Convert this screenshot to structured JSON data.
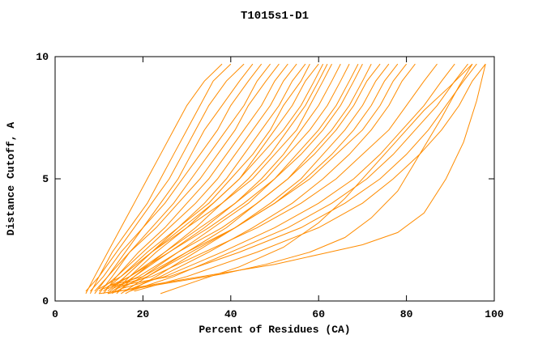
{
  "chart": {
    "title": "T1015s1-D1",
    "xlabel": "Percent of Residues (CA)",
    "ylabel": "Distance Cutoff, A"
  },
  "chart_data": {
    "type": "line",
    "title": "T1015s1-D1",
    "xlabel": "Percent of Residues (CA)",
    "ylabel": "Distance Cutoff, A",
    "xlim": [
      0,
      100
    ],
    "ylim": [
      0,
      10
    ],
    "x_ticks": [
      0,
      20,
      40,
      60,
      80,
      100
    ],
    "y_ticks": [
      0,
      5,
      10
    ],
    "grid": false,
    "legend": "none",
    "line_color": "#ff8c00",
    "axis_color": "#000000",
    "curves": [
      [
        [
          7,
          0.3
        ],
        [
          9,
          1
        ],
        [
          12,
          2
        ],
        [
          15,
          3
        ],
        [
          18,
          4
        ],
        [
          21,
          5
        ],
        [
          24,
          6
        ],
        [
          27,
          7
        ],
        [
          30,
          8
        ],
        [
          34,
          9
        ],
        [
          38,
          9.7
        ]
      ],
      [
        [
          8,
          0.3
        ],
        [
          10,
          1
        ],
        [
          13,
          2
        ],
        [
          17,
          3
        ],
        [
          21,
          4
        ],
        [
          24,
          5
        ],
        [
          27,
          6
        ],
        [
          30,
          7
        ],
        [
          33,
          8
        ],
        [
          36,
          9
        ],
        [
          40,
          9.7
        ]
      ],
      [
        [
          7,
          0.4
        ],
        [
          10,
          1
        ],
        [
          14,
          2
        ],
        [
          18,
          3
        ],
        [
          22,
          4
        ],
        [
          26,
          5
        ],
        [
          29,
          6
        ],
        [
          32,
          7
        ],
        [
          35,
          8
        ],
        [
          39,
          9
        ],
        [
          43,
          9.7
        ]
      ],
      [
        [
          9,
          0.3
        ],
        [
          12,
          1
        ],
        [
          16,
          2
        ],
        [
          20,
          3
        ],
        [
          24,
          4
        ],
        [
          28,
          5
        ],
        [
          31,
          6
        ],
        [
          34,
          7
        ],
        [
          38,
          8
        ],
        [
          42,
          9
        ],
        [
          45,
          9.7
        ]
      ],
      [
        [
          8,
          0.4
        ],
        [
          11,
          1
        ],
        [
          15,
          2
        ],
        [
          20,
          3
        ],
        [
          25,
          4
        ],
        [
          29,
          5
        ],
        [
          33,
          6
        ],
        [
          37,
          7
        ],
        [
          40,
          8
        ],
        [
          44,
          9
        ],
        [
          47,
          9.7
        ]
      ],
      [
        [
          10,
          0.3
        ],
        [
          13,
          1
        ],
        [
          17,
          2
        ],
        [
          22,
          3
        ],
        [
          27,
          4
        ],
        [
          31,
          5
        ],
        [
          35,
          6
        ],
        [
          39,
          7
        ],
        [
          43,
          8
        ],
        [
          46,
          9
        ],
        [
          49,
          9.7
        ]
      ],
      [
        [
          9,
          0.4
        ],
        [
          12,
          1
        ],
        [
          17,
          2
        ],
        [
          23,
          3
        ],
        [
          28,
          4
        ],
        [
          33,
          5
        ],
        [
          37,
          6
        ],
        [
          41,
          7
        ],
        [
          44,
          8
        ],
        [
          48,
          9
        ],
        [
          51,
          9.7
        ]
      ],
      [
        [
          11,
          0.3
        ],
        [
          14,
          1
        ],
        [
          19,
          2
        ],
        [
          25,
          3
        ],
        [
          30,
          4
        ],
        [
          35,
          5
        ],
        [
          39,
          6
        ],
        [
          43,
          7
        ],
        [
          47,
          8
        ],
        [
          50,
          9
        ],
        [
          53,
          9.7
        ]
      ],
      [
        [
          10,
          0.4
        ],
        [
          14,
          1
        ],
        [
          20,
          2
        ],
        [
          26,
          3
        ],
        [
          32,
          4
        ],
        [
          37,
          5
        ],
        [
          41,
          6
        ],
        [
          45,
          7
        ],
        [
          49,
          8
        ],
        [
          52,
          9
        ],
        [
          55,
          9.7
        ]
      ],
      [
        [
          12,
          0.3
        ],
        [
          16,
          1
        ],
        [
          22,
          2
        ],
        [
          28,
          3
        ],
        [
          34,
          4
        ],
        [
          39,
          5
        ],
        [
          43,
          6
        ],
        [
          47,
          7
        ],
        [
          51,
          8
        ],
        [
          54,
          9
        ],
        [
          57,
          9.7
        ]
      ],
      [
        [
          11,
          0.4
        ],
        [
          15,
          1
        ],
        [
          21,
          2
        ],
        [
          28,
          3
        ],
        [
          35,
          4
        ],
        [
          40,
          5
        ],
        [
          45,
          6
        ],
        [
          49,
          7
        ],
        [
          52,
          8
        ],
        [
          56,
          9
        ],
        [
          58,
          9.7
        ]
      ],
      [
        [
          13,
          0.3
        ],
        [
          17,
          1
        ],
        [
          23,
          2
        ],
        [
          30,
          3
        ],
        [
          36,
          4
        ],
        [
          42,
          5
        ],
        [
          46,
          6
        ],
        [
          50,
          7
        ],
        [
          54,
          8
        ],
        [
          57,
          9
        ],
        [
          60,
          9.7
        ]
      ],
      [
        [
          12,
          0.4
        ],
        [
          16,
          1
        ],
        [
          22,
          2
        ],
        [
          29,
          3
        ],
        [
          36,
          4
        ],
        [
          42,
          5
        ],
        [
          47,
          6
        ],
        [
          52,
          7
        ],
        [
          56,
          8
        ],
        [
          59,
          9
        ],
        [
          61,
          9.7
        ]
      ],
      [
        [
          14,
          0.3
        ],
        [
          18,
          1
        ],
        [
          25,
          2
        ],
        [
          32,
          3
        ],
        [
          38,
          4
        ],
        [
          44,
          5
        ],
        [
          49,
          6
        ],
        [
          53,
          7
        ],
        [
          57,
          8
        ],
        [
          60,
          9
        ],
        [
          62,
          9.7
        ]
      ],
      [
        [
          10,
          0.5
        ],
        [
          15,
          1
        ],
        [
          22,
          2
        ],
        [
          30,
          3
        ],
        [
          38,
          4
        ],
        [
          45,
          5
        ],
        [
          50,
          6
        ],
        [
          55,
          7
        ],
        [
          58,
          8
        ],
        [
          61,
          9
        ],
        [
          63,
          9.7
        ]
      ],
      [
        [
          13,
          0.4
        ],
        [
          18,
          1
        ],
        [
          26,
          2
        ],
        [
          34,
          3
        ],
        [
          41,
          4
        ],
        [
          47,
          5
        ],
        [
          52,
          6
        ],
        [
          56,
          7
        ],
        [
          60,
          8
        ],
        [
          63,
          9
        ],
        [
          65,
          9.7
        ]
      ],
      [
        [
          12,
          0.5
        ],
        [
          17,
          1
        ],
        [
          25,
          2
        ],
        [
          33,
          3
        ],
        [
          41,
          4
        ],
        [
          48,
          5
        ],
        [
          53,
          6
        ],
        [
          58,
          7
        ],
        [
          62,
          8
        ],
        [
          65,
          9
        ],
        [
          67,
          9.7
        ]
      ],
      [
        [
          14,
          0.4
        ],
        [
          20,
          1
        ],
        [
          28,
          2
        ],
        [
          36,
          3
        ],
        [
          44,
          4
        ],
        [
          50,
          5
        ],
        [
          55,
          6
        ],
        [
          60,
          7
        ],
        [
          64,
          8
        ],
        [
          67,
          9
        ],
        [
          69,
          9.7
        ]
      ],
      [
        [
          11,
          0.5
        ],
        [
          17,
          1
        ],
        [
          26,
          2
        ],
        [
          35,
          3
        ],
        [
          43,
          4
        ],
        [
          50,
          5
        ],
        [
          56,
          6
        ],
        [
          61,
          7
        ],
        [
          65,
          8
        ],
        [
          68,
          9
        ],
        [
          70,
          9.7
        ]
      ],
      [
        [
          15,
          0.3
        ],
        [
          21,
          1
        ],
        [
          30,
          2
        ],
        [
          39,
          3
        ],
        [
          46,
          4
        ],
        [
          53,
          5
        ],
        [
          58,
          6
        ],
        [
          63,
          7
        ],
        [
          67,
          8
        ],
        [
          70,
          9
        ],
        [
          72,
          9.7
        ]
      ],
      [
        [
          13,
          0.5
        ],
        [
          19,
          1
        ],
        [
          28,
          2
        ],
        [
          38,
          3
        ],
        [
          46,
          4
        ],
        [
          53,
          5
        ],
        [
          59,
          6
        ],
        [
          64,
          7
        ],
        [
          68,
          8
        ],
        [
          71,
          9
        ],
        [
          74,
          9.7
        ]
      ],
      [
        [
          16,
          0.3
        ],
        [
          23,
          1
        ],
        [
          32,
          2
        ],
        [
          41,
          3
        ],
        [
          49,
          4
        ],
        [
          56,
          5
        ],
        [
          61,
          6
        ],
        [
          66,
          7
        ],
        [
          70,
          8
        ],
        [
          73,
          9
        ],
        [
          76,
          9.7
        ]
      ],
      [
        [
          14,
          0.5
        ],
        [
          21,
          1
        ],
        [
          31,
          2
        ],
        [
          41,
          3
        ],
        [
          50,
          4
        ],
        [
          57,
          5
        ],
        [
          63,
          6
        ],
        [
          68,
          7
        ],
        [
          72,
          8
        ],
        [
          75,
          9
        ],
        [
          78,
          9.7
        ]
      ],
      [
        [
          12,
          0.6
        ],
        [
          20,
          1
        ],
        [
          30,
          2
        ],
        [
          41,
          3
        ],
        [
          50,
          4
        ],
        [
          58,
          5
        ],
        [
          64,
          6
        ],
        [
          70,
          7
        ],
        [
          74,
          8
        ],
        [
          77,
          9
        ],
        [
          80,
          9.7
        ]
      ],
      [
        [
          16,
          0.4
        ],
        [
          24,
          1
        ],
        [
          35,
          2
        ],
        [
          45,
          3
        ],
        [
          54,
          4
        ],
        [
          61,
          5
        ],
        [
          67,
          6
        ],
        [
          72,
          7
        ],
        [
          76,
          8
        ],
        [
          79,
          9
        ],
        [
          82,
          9.7
        ]
      ],
      [
        [
          13,
          0.6
        ],
        [
          22,
          1
        ],
        [
          34,
          2
        ],
        [
          46,
          3
        ],
        [
          56,
          4
        ],
        [
          64,
          5
        ],
        [
          70,
          6
        ],
        [
          76,
          7
        ],
        [
          80,
          8
        ],
        [
          84,
          9
        ],
        [
          87,
          9.7
        ]
      ],
      [
        [
          15,
          0.5
        ],
        [
          25,
          1
        ],
        [
          38,
          2
        ],
        [
          50,
          3
        ],
        [
          60,
          4
        ],
        [
          68,
          5
        ],
        [
          74,
          6
        ],
        [
          79,
          7
        ],
        [
          84,
          8
        ],
        [
          88,
          9
        ],
        [
          91,
          9.7
        ]
      ],
      [
        [
          17,
          0.4
        ],
        [
          27,
          1
        ],
        [
          40,
          2
        ],
        [
          53,
          3
        ],
        [
          63,
          4
        ],
        [
          71,
          5
        ],
        [
          77,
          6
        ],
        [
          82,
          7
        ],
        [
          87,
          8
        ],
        [
          91,
          9
        ],
        [
          94,
          9.7
        ]
      ],
      [
        [
          14,
          0.6
        ],
        [
          26,
          1
        ],
        [
          42,
          2
        ],
        [
          56,
          3
        ],
        [
          66,
          4
        ],
        [
          74,
          5
        ],
        [
          80,
          6
        ],
        [
          85,
          7
        ],
        [
          89,
          8
        ],
        [
          93,
          9
        ],
        [
          96,
          9.7
        ]
      ],
      [
        [
          18,
          0.4
        ],
        [
          30,
          1
        ],
        [
          46,
          2
        ],
        [
          60,
          3
        ],
        [
          70,
          4
        ],
        [
          77,
          5
        ],
        [
          83,
          6
        ],
        [
          88,
          7
        ],
        [
          92,
          8
        ],
        [
          95,
          9
        ],
        [
          98,
          9.7
        ]
      ],
      [
        [
          12,
          0.3
        ],
        [
          20,
          0.6
        ],
        [
          30,
          0.9
        ],
        [
          40,
          1.2
        ],
        [
          50,
          1.5
        ],
        [
          60,
          1.9
        ],
        [
          70,
          2.3
        ],
        [
          78,
          2.8
        ],
        [
          84,
          3.6
        ],
        [
          89,
          5
        ],
        [
          93,
          6.5
        ],
        [
          96,
          8.2
        ],
        [
          98,
          9.7
        ]
      ],
      [
        [
          10,
          0.3
        ],
        [
          18,
          0.5
        ],
        [
          28,
          0.8
        ],
        [
          38,
          1.1
        ],
        [
          48,
          1.5
        ],
        [
          58,
          2
        ],
        [
          66,
          2.6
        ],
        [
          72,
          3.4
        ],
        [
          78,
          4.5
        ],
        [
          83,
          6
        ],
        [
          88,
          7.5
        ],
        [
          92,
          8.8
        ],
        [
          95,
          9.7
        ]
      ],
      [
        [
          24,
          0.3
        ],
        [
          32,
          0.8
        ],
        [
          42,
          1.4
        ],
        [
          52,
          2.2
        ],
        [
          60,
          3.2
        ],
        [
          66,
          4.2
        ],
        [
          72,
          5.4
        ],
        [
          78,
          6.6
        ],
        [
          84,
          7.8
        ],
        [
          90,
          8.8
        ],
        [
          95,
          9.7
        ]
      ]
    ]
  }
}
